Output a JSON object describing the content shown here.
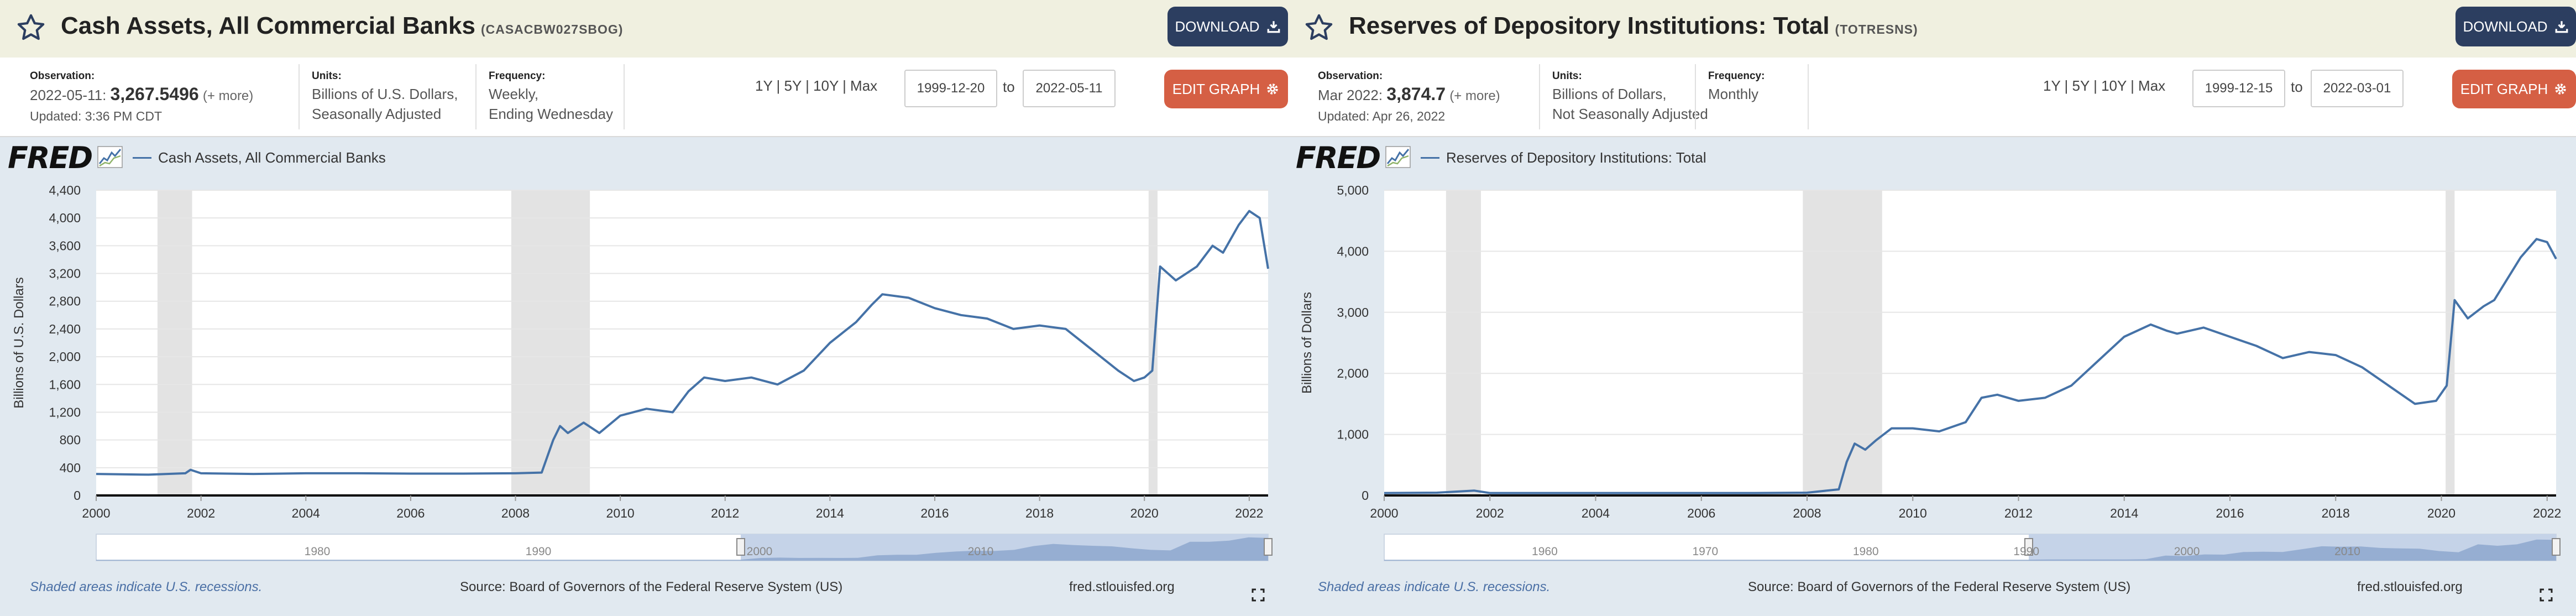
{
  "panels": [
    {
      "title": "Cash Assets, All Commercial Banks",
      "series_id": "(CASACBW027SBOG)",
      "download_label": "DOWNLOAD",
      "observation_label": "Observation:",
      "observation_date": "2022-05-11:",
      "observation_value": "3,267.5496",
      "more": "(+ more)",
      "updated": "Updated: 3:36 PM CDT",
      "units_label": "Units:",
      "units_line1": "Billions of U.S. Dollars,",
      "units_line2": "Seasonally Adjusted",
      "frequency_label": "Frequency:",
      "frequency_line1": "Weekly,",
      "frequency_line2": "Ending Wednesday",
      "ranges": "1Y | 5Y | 10Y | Max",
      "start_date": "1999-12-20",
      "to_label": "to",
      "end_date": "2022-05-11",
      "edit_label": "EDIT GRAPH",
      "logo": "FRED",
      "legend": "Cash Assets, All Commercial Banks",
      "footer_note": "Shaded areas indicate U.S. recessions.",
      "footer_source": "Source: Board of Governors of the Federal Reserve System (US)",
      "footer_site": "fred.stlouisfed.org",
      "nav_labels": [
        "1980",
        "1990",
        "2000",
        "2010"
      ]
    },
    {
      "title": "Reserves of Depository Institutions: Total",
      "series_id": "(TOTRESNS)",
      "download_label": "DOWNLOAD",
      "observation_label": "Observation:",
      "observation_date": "Mar 2022:",
      "observation_value": "3,874.7",
      "more": "(+ more)",
      "updated": "Updated: Apr 26, 2022",
      "units_label": "Units:",
      "units_line1": "Billions of Dollars,",
      "units_line2": "Not Seasonally Adjusted",
      "frequency_label": "Frequency:",
      "frequency_line1": "Monthly",
      "frequency_line2": "",
      "ranges": "1Y | 5Y | 10Y | Max",
      "start_date": "1999-12-15",
      "to_label": "to",
      "end_date": "2022-03-01",
      "edit_label": "EDIT GRAPH",
      "logo": "FRED",
      "legend": "Reserves of Depository Institutions: Total",
      "footer_note": "Shaded areas indicate U.S. recessions.",
      "footer_source": "Source: Board of Governors of the Federal Reserve System (US)",
      "footer_site": "fred.stlouisfed.org",
      "nav_labels": [
        "1960",
        "1970",
        "1980",
        "1990",
        "2000",
        "2010"
      ]
    }
  ],
  "colors": {
    "line": "#4572a7",
    "recession": "#e3e3e3",
    "download": "#2c3e60",
    "edit": "#d55f44",
    "title_bg": "#f0f0e0",
    "page_bg": "#e1e9f0"
  },
  "chart_data": [
    {
      "type": "line",
      "title": "Cash Assets, All Commercial Banks",
      "ylabel": "Billions of U.S. Dollars",
      "xlim": [
        2000.0,
        2022.36
      ],
      "ylim": [
        0,
        4400
      ],
      "yticks": [
        0,
        400,
        800,
        1200,
        1600,
        2000,
        2400,
        2800,
        3200,
        3600,
        4000,
        4400
      ],
      "ytick_labels": [
        "0",
        "400",
        "800",
        "1,200",
        "1,600",
        "2,000",
        "2,400",
        "2,800",
        "3,200",
        "3,600",
        "4,000",
        "4,400"
      ],
      "xticks": [
        2000,
        2002,
        2004,
        2006,
        2008,
        2010,
        2012,
        2014,
        2016,
        2018,
        2020,
        2022
      ],
      "recessions": [
        [
          2001.17,
          2001.83
        ],
        [
          2007.92,
          2009.42
        ],
        [
          2020.08,
          2020.25
        ]
      ],
      "grid": true,
      "series": [
        {
          "name": "Cash Assets, All Commercial Banks",
          "x": [
            2000.0,
            2001.0,
            2001.7,
            2001.8,
            2002.0,
            2003.0,
            2004.0,
            2005.0,
            2006.0,
            2007.0,
            2008.0,
            2008.5,
            2008.72,
            2008.85,
            2009.0,
            2009.3,
            2009.6,
            2010.0,
            2010.5,
            2011.0,
            2011.3,
            2011.6,
            2012.0,
            2012.5,
            2013.0,
            2013.5,
            2014.0,
            2014.5,
            2014.8,
            2015.0,
            2015.5,
            2016.0,
            2016.5,
            2017.0,
            2017.5,
            2018.0,
            2018.5,
            2019.0,
            2019.5,
            2019.8,
            2020.0,
            2020.15,
            2020.3,
            2020.6,
            2021.0,
            2021.3,
            2021.5,
            2021.8,
            2022.0,
            2022.2,
            2022.36
          ],
          "values": [
            310,
            300,
            320,
            370,
            320,
            310,
            320,
            320,
            315,
            315,
            320,
            330,
            800,
            1000,
            900,
            1050,
            900,
            1150,
            1250,
            1200,
            1500,
            1700,
            1650,
            1700,
            1600,
            1800,
            2200,
            2500,
            2750,
            2900,
            2850,
            2700,
            2600,
            2550,
            2400,
            2450,
            2400,
            2100,
            1800,
            1650,
            1700,
            1800,
            3300,
            3100,
            3300,
            3600,
            3500,
            3900,
            4100,
            4000,
            3268
          ]
        }
      ]
    },
    {
      "type": "line",
      "title": "Reserves of Depository Institutions: Total",
      "ylabel": "Billions of Dollars",
      "xlim": [
        2000.0,
        2022.17
      ],
      "ylim": [
        0,
        5000
      ],
      "yticks": [
        0,
        1000,
        2000,
        3000,
        4000,
        5000
      ],
      "ytick_labels": [
        "0",
        "1,000",
        "2,000",
        "3,000",
        "4,000",
        "5,000"
      ],
      "xticks": [
        2000,
        2002,
        2004,
        2006,
        2008,
        2010,
        2012,
        2014,
        2016,
        2018,
        2020,
        2022
      ],
      "recessions": [
        [
          2001.17,
          2001.83
        ],
        [
          2007.92,
          2009.42
        ],
        [
          2020.08,
          2020.25
        ]
      ],
      "grid": true,
      "series": [
        {
          "name": "Reserves of Depository Institutions: Total",
          "x": [
            2000.0,
            2001.0,
            2001.7,
            2002.0,
            2003.0,
            2004.0,
            2005.0,
            2006.0,
            2007.0,
            2008.0,
            2008.6,
            2008.75,
            2008.9,
            2009.1,
            2009.3,
            2009.6,
            2010.0,
            2010.5,
            2011.0,
            2011.3,
            2011.6,
            2012.0,
            2012.5,
            2013.0,
            2013.5,
            2014.0,
            2014.5,
            2014.8,
            2015.0,
            2015.5,
            2016.0,
            2016.5,
            2017.0,
            2017.5,
            2018.0,
            2018.5,
            2019.0,
            2019.5,
            2019.9,
            2020.1,
            2020.25,
            2020.5,
            2020.8,
            2021.0,
            2021.5,
            2021.8,
            2022.0,
            2022.17
          ],
          "values": [
            40,
            45,
            80,
            40,
            40,
            40,
            40,
            40,
            40,
            45,
            100,
            550,
            850,
            750,
            900,
            1100,
            1100,
            1050,
            1200,
            1600,
            1650,
            1550,
            1600,
            1800,
            2200,
            2600,
            2800,
            2700,
            2650,
            2750,
            2600,
            2450,
            2250,
            2350,
            2300,
            2100,
            1800,
            1500,
            1550,
            1800,
            3200,
            2900,
            3100,
            3200,
            3900,
            4200,
            4150,
            3875
          ]
        }
      ]
    }
  ]
}
